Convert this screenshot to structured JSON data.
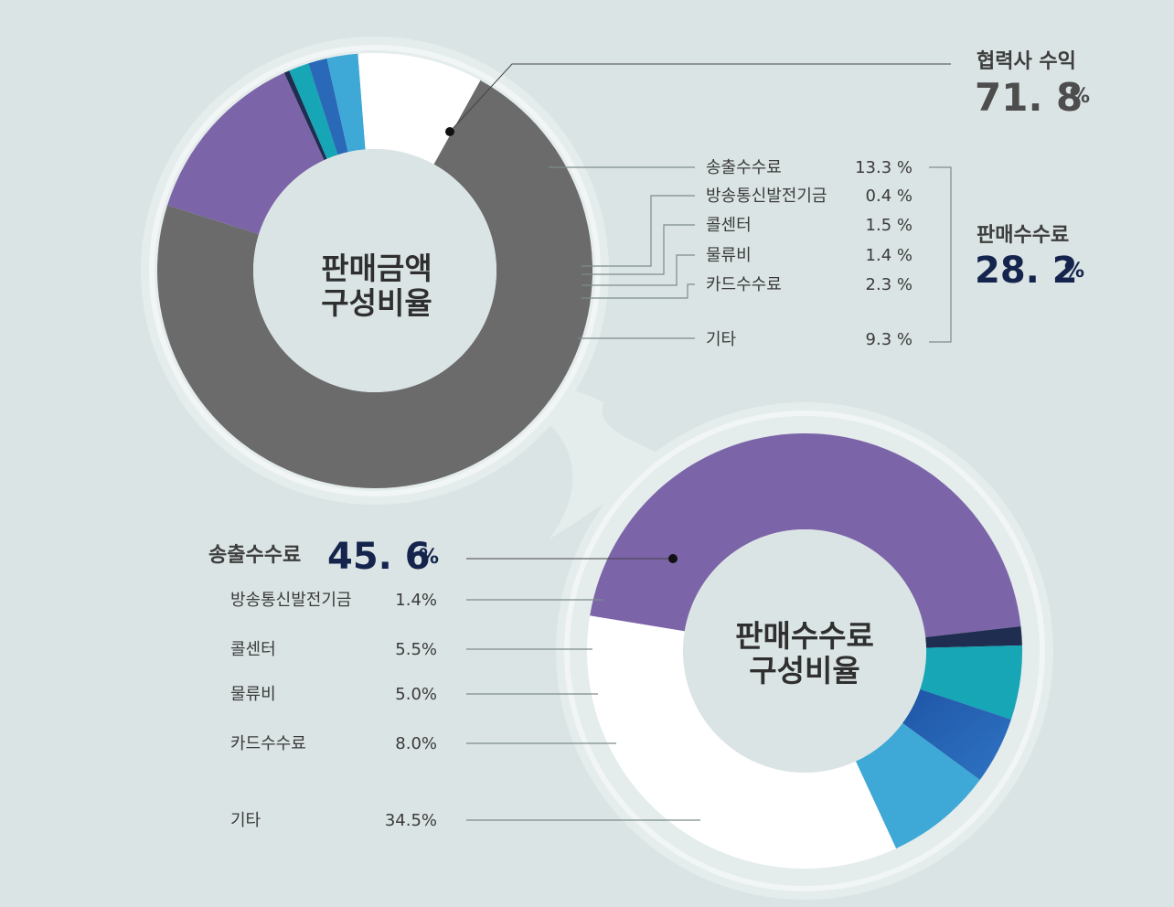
{
  "colors": {
    "gray": "#6b6b6b",
    "purple": "#7c64a8",
    "navy": "#1f2d50",
    "teal": "#16a6b5",
    "blue": "#2a68b8",
    "sky": "#3ea8d6",
    "white": "#ffffff"
  },
  "chart_data": [
    {
      "type": "pie",
      "title": "판매금액 구성비율",
      "title_lines": [
        "판매금액",
        "구성비율"
      ],
      "slices": [
        {
          "name": "협력사 수익",
          "value": 71.8,
          "color": "gray"
        },
        {
          "name": "송출수수료",
          "value": 13.3,
          "color": "purple"
        },
        {
          "name": "방송통신발전기금",
          "value": 0.4,
          "color": "navy"
        },
        {
          "name": "콜센터",
          "value": 1.5,
          "color": "teal"
        },
        {
          "name": "물류비",
          "value": 1.4,
          "color": "blue"
        },
        {
          "name": "카드수수료",
          "value": 2.3,
          "color": "sky"
        },
        {
          "name": "기타",
          "value": 9.3,
          "color": "white"
        }
      ],
      "legend_rows": [
        {
          "label": "송출수수료",
          "value_text": "13.3 %"
        },
        {
          "label": "방송통신발전기금",
          "value_text": "0.4 %"
        },
        {
          "label": "콜센터",
          "value_text": "1.5 %"
        },
        {
          "label": "물류비",
          "value_text": "1.4 %"
        },
        {
          "label": "카드수수료",
          "value_text": "2.3 %"
        },
        {
          "label": "기타",
          "value_text": "9.3 %"
        }
      ],
      "callout_partner": {
        "label": "협력사 수익",
        "value": "71. 8",
        "unit": "%"
      },
      "callout_fee_total": {
        "label": "판매수수료",
        "value": "28. 2",
        "unit": "%"
      }
    },
    {
      "type": "pie",
      "title": "판매수수료 구성비율",
      "title_lines": [
        "판매수수료",
        "구성비율"
      ],
      "slices": [
        {
          "name": "송출수수료",
          "value": 45.6,
          "color": "purple"
        },
        {
          "name": "방송통신발전기금",
          "value": 1.4,
          "color": "navy"
        },
        {
          "name": "콜센터",
          "value": 5.5,
          "color": "teal"
        },
        {
          "name": "물류비",
          "value": 5.0,
          "color": "blue"
        },
        {
          "name": "카드수수료",
          "value": 8.0,
          "color": "sky"
        },
        {
          "name": "기타",
          "value": 34.5,
          "color": "white"
        }
      ],
      "callout_main": {
        "label": "송출수수료",
        "value": "45. 6",
        "unit": "%"
      },
      "legend_rows": [
        {
          "label": "방송통신발전기금",
          "value_text": "1.4%"
        },
        {
          "label": "콜센터",
          "value_text": "5.5%"
        },
        {
          "label": "물류비",
          "value_text": "5.0%"
        },
        {
          "label": "카드수수료",
          "value_text": "8.0%"
        },
        {
          "label": "기타",
          "value_text": "34.5%"
        }
      ]
    }
  ]
}
